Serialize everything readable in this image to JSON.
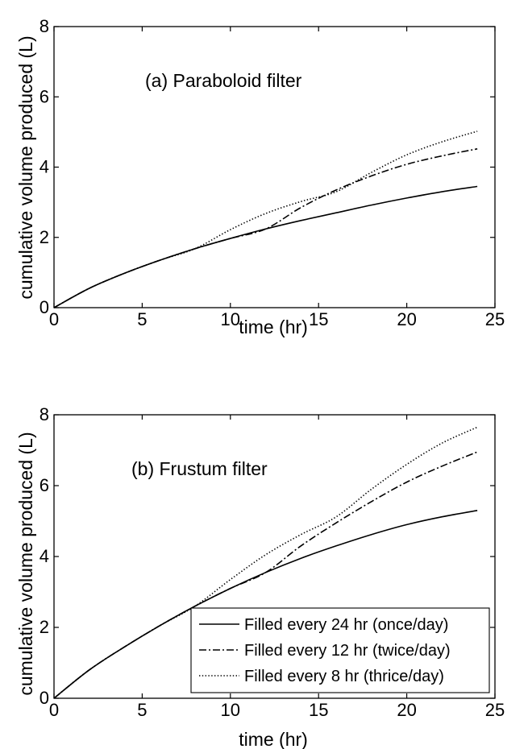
{
  "chart_data": [
    {
      "type": "line",
      "annotation": "(a) Paraboloid filter",
      "xlabel": "time (hr)",
      "ylabel": "cumulative volume produced (L)",
      "xlim": [
        0,
        25
      ],
      "ylim": [
        0,
        8
      ],
      "xticks": [
        "0",
        "5",
        "10",
        "15",
        "20",
        "25"
      ],
      "yticks": [
        "0",
        "2",
        "4",
        "6",
        "8"
      ],
      "grid": false,
      "series": [
        {
          "style": "solid",
          "x": [
            0,
            2,
            4,
            6,
            8,
            10,
            12,
            14,
            16,
            18,
            20,
            22,
            24
          ],
          "y": [
            0,
            0.55,
            0.98,
            1.35,
            1.68,
            1.97,
            2.24,
            2.48,
            2.7,
            2.92,
            3.12,
            3.3,
            3.45
          ]
        },
        {
          "style": "dashdot",
          "x": [
            0,
            2,
            4,
            6,
            8,
            10,
            12,
            14,
            16,
            18,
            20,
            22,
            24
          ],
          "y": [
            0,
            0.55,
            0.98,
            1.35,
            1.68,
            1.97,
            2.24,
            2.85,
            3.35,
            3.75,
            4.08,
            4.32,
            4.52
          ]
        },
        {
          "style": "dotted",
          "x": [
            0,
            2,
            4,
            6,
            8,
            10,
            12,
            14,
            16,
            18,
            20,
            22,
            24
          ],
          "y": [
            0,
            0.55,
            0.98,
            1.35,
            1.68,
            2.22,
            2.68,
            3.02,
            3.3,
            3.85,
            4.35,
            4.72,
            5.02
          ]
        }
      ]
    },
    {
      "type": "line",
      "annotation": "(b) Frustum filter",
      "xlabel": "time (hr)",
      "ylabel": "cumulative volume produced (L)",
      "xlim": [
        0,
        25
      ],
      "ylim": [
        0,
        8
      ],
      "xticks": [
        "0",
        "5",
        "10",
        "15",
        "20",
        "25"
      ],
      "yticks": [
        "0",
        "2",
        "4",
        "6",
        "8"
      ],
      "grid": false,
      "legend_position": "bottom-right",
      "legend": [
        "Filled every 24 hr (once/day)",
        "Filled every 12 hr (twice/day)",
        "Filled every 8 hr (thrice/day)"
      ],
      "series": [
        {
          "style": "solid",
          "x": [
            0,
            2,
            4,
            6,
            8,
            10,
            12,
            14,
            16,
            18,
            20,
            22,
            24
          ],
          "y": [
            0,
            0.8,
            1.45,
            2.05,
            2.6,
            3.1,
            3.55,
            3.95,
            4.3,
            4.62,
            4.9,
            5.12,
            5.3
          ]
        },
        {
          "style": "dashdot",
          "x": [
            0,
            2,
            4,
            6,
            8,
            10,
            12,
            14,
            16,
            18,
            20,
            22,
            24
          ],
          "y": [
            0,
            0.8,
            1.45,
            2.05,
            2.6,
            3.1,
            3.55,
            4.3,
            4.95,
            5.55,
            6.1,
            6.55,
            6.95
          ]
        },
        {
          "style": "dotted",
          "x": [
            0,
            2,
            4,
            6,
            8,
            10,
            12,
            14,
            16,
            18,
            20,
            22,
            24
          ],
          "y": [
            0,
            0.8,
            1.45,
            2.05,
            2.6,
            3.35,
            4.05,
            4.62,
            5.12,
            5.9,
            6.6,
            7.2,
            7.65
          ]
        }
      ]
    }
  ]
}
